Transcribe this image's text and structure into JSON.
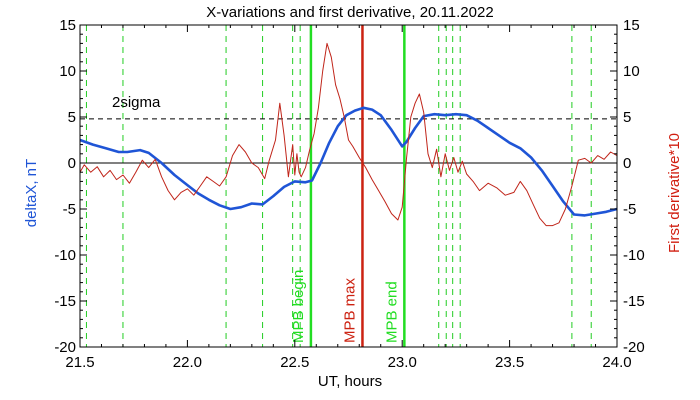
{
  "chart_data": {
    "type": "line",
    "title": "X-variations and first derivative, 20.11.2022",
    "xlabel": "UT, hours",
    "ylabel_left": "deltaX, nT",
    "ylabel_right": "First derivative*10",
    "xlim": [
      21.5,
      24.0
    ],
    "ylim": [
      -20,
      15
    ],
    "x_ticks": [
      "21.5",
      "22.0",
      "22.5",
      "23.0",
      "23.5",
      "24.0"
    ],
    "y_ticks": [
      "-20",
      "-15",
      "-10",
      "-5",
      "0",
      "5",
      "10",
      "15"
    ],
    "colors": {
      "deltaX": "#1f55d6",
      "derivative": "#c0251a",
      "mpb_begin_end": "#22dd22",
      "mpb_max": "#cc2211",
      "grid_dashed": "#22cc22",
      "sigma": "#000000"
    },
    "sigma": {
      "label": "2sigma",
      "value": 4.8
    },
    "vertical_markers": [
      {
        "x": 22.575,
        "label": "MPB begin",
        "kind": "begin"
      },
      {
        "x": 22.815,
        "label": "MPB max",
        "kind": "max"
      },
      {
        "x": 23.01,
        "label": "MPB end",
        "kind": "end"
      }
    ],
    "dashed_lines_x": [
      21.53,
      21.7,
      22.18,
      22.35,
      22.49,
      22.525,
      23.17,
      23.205,
      23.235,
      23.27,
      23.79,
      23.88
    ],
    "series": [
      {
        "key": "deltaX",
        "x": [
          21.5,
          21.56,
          21.62,
          21.68,
          21.72,
          21.78,
          21.82,
          21.88,
          21.94,
          22.0,
          22.05,
          22.1,
          22.15,
          22.2,
          22.25,
          22.3,
          22.35,
          22.4,
          22.45,
          22.5,
          22.55,
          22.58,
          22.62,
          22.66,
          22.7,
          22.74,
          22.78,
          22.82,
          22.86,
          22.9,
          22.95,
          23.0,
          23.02,
          23.06,
          23.1,
          23.15,
          23.2,
          23.25,
          23.3,
          23.35,
          23.4,
          23.45,
          23.5,
          23.55,
          23.6,
          23.65,
          23.7,
          23.75,
          23.8,
          23.85,
          23.9,
          23.95,
          24.0
        ],
        "values": [
          2.5,
          2.0,
          1.6,
          1.2,
          1.2,
          1.4,
          1.1,
          0.0,
          -1.3,
          -2.4,
          -3.3,
          -4.0,
          -4.6,
          -5.0,
          -4.8,
          -4.4,
          -4.5,
          -3.6,
          -2.6,
          -2.0,
          -2.1,
          -1.9,
          0.0,
          2.2,
          4.0,
          5.2,
          5.7,
          6.0,
          5.8,
          5.2,
          3.6,
          1.8,
          2.3,
          3.8,
          5.1,
          5.3,
          5.2,
          5.3,
          5.2,
          4.6,
          3.8,
          3.0,
          2.2,
          1.6,
          0.6,
          -0.8,
          -2.5,
          -4.2,
          -5.6,
          -5.7,
          -5.5,
          -5.3,
          -5.0
        ]
      },
      {
        "key": "derivative",
        "x": [
          21.5,
          21.52,
          21.55,
          21.58,
          21.61,
          21.64,
          21.67,
          21.7,
          21.73,
          21.76,
          21.79,
          21.82,
          21.85,
          21.88,
          21.91,
          21.94,
          21.97,
          22.0,
          22.03,
          22.06,
          22.09,
          22.12,
          22.15,
          22.18,
          22.21,
          22.24,
          22.27,
          22.3,
          22.33,
          22.36,
          22.38,
          22.41,
          22.43,
          22.45,
          22.47,
          22.49,
          22.5,
          22.51,
          22.52,
          22.53,
          22.55,
          22.57,
          22.59,
          22.61,
          22.63,
          22.65,
          22.67,
          22.69,
          22.71,
          22.73,
          22.75,
          22.77,
          22.8,
          22.83,
          22.86,
          22.89,
          22.92,
          22.95,
          22.98,
          23.0,
          23.02,
          23.04,
          23.06,
          23.08,
          23.1,
          23.12,
          23.14,
          23.16,
          23.18,
          23.2,
          23.22,
          23.24,
          23.26,
          23.28,
          23.3,
          23.33,
          23.36,
          23.4,
          23.44,
          23.48,
          23.52,
          23.55,
          23.58,
          23.61,
          23.64,
          23.67,
          23.7,
          23.73,
          23.76,
          23.79,
          23.82,
          23.85,
          23.88,
          23.91,
          23.94,
          23.97,
          24.0
        ],
        "values": [
          -1.0,
          -0.2,
          -1.0,
          -0.4,
          -1.5,
          -0.8,
          -1.8,
          -1.3,
          -2.2,
          -1.0,
          0.3,
          -0.5,
          0.4,
          -1.5,
          -3.0,
          -4.0,
          -3.2,
          -2.8,
          -3.5,
          -2.5,
          -1.5,
          -2.0,
          -2.5,
          -1.5,
          0.8,
          2.0,
          1.2,
          0.0,
          -0.5,
          -1.7,
          0.2,
          2.5,
          6.5,
          3.0,
          -1.5,
          2.0,
          -1.3,
          1.0,
          -1.0,
          -1.5,
          -0.5,
          1.5,
          3.2,
          6.0,
          10.0,
          13.0,
          11.5,
          8.5,
          7.0,
          5.0,
          2.5,
          1.8,
          0.6,
          -0.5,
          -1.8,
          -3.0,
          -4.2,
          -5.5,
          -6.2,
          -4.8,
          0.5,
          5.0,
          6.5,
          7.5,
          5.5,
          1.0,
          -0.5,
          1.5,
          -1.5,
          1.0,
          -0.8,
          0.6,
          -1.0,
          0.2,
          -1.2,
          -2.0,
          -3.0,
          -2.2,
          -2.7,
          -3.5,
          -3.2,
          -2.0,
          -3.0,
          -4.5,
          -6.0,
          -6.8,
          -6.8,
          -6.5,
          -5.0,
          -2.5,
          0.3,
          0.5,
          0.0,
          0.8,
          0.4,
          1.2,
          0.8
        ]
      }
    ]
  }
}
